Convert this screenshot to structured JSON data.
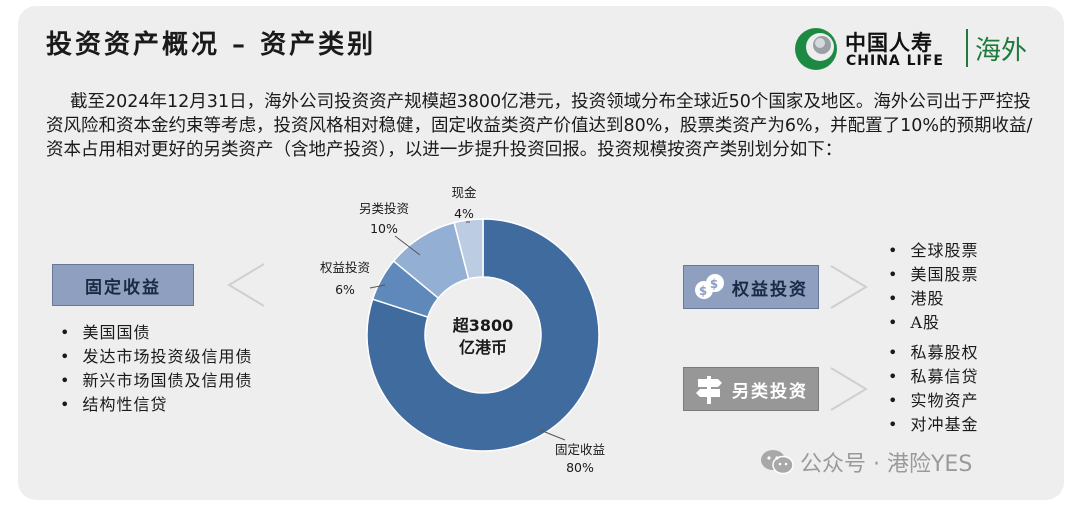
{
  "title": "投资资产概况 – 资产类别",
  "logo": {
    "cn": "中国人寿",
    "en": "CHINA LIFE",
    "region": "海外"
  },
  "intro": "截至2024年12月31日，海外公司投资资产规模超3800亿港元，投资领域分布全球近50个国家及地区。海外公司出于严控投资风险和资本金约束等考虑，投资风格相对稳健，固定收益类资产价值达到80%，股票类资产为6%，并配置了10%的预期收益/资本占用相对更好的另类资产（含地产投资），以进一步提升投资回报。投资规模按资产类别划分如下：",
  "chart_data": {
    "type": "pie",
    "donut": true,
    "center_label": [
      "超3800",
      "亿港币"
    ],
    "slices": [
      {
        "label": "固定收益",
        "value": 80,
        "value_label": "80%",
        "color": "#3f6b9e"
      },
      {
        "label": "权益投资",
        "value": 6,
        "value_label": "6%",
        "color": "#5f88bb"
      },
      {
        "label": "另类投资",
        "value": 10,
        "value_label": "10%",
        "color": "#93afd3"
      },
      {
        "label": "现金",
        "value": 4,
        "value_label": "4%",
        "color": "#bccce2"
      }
    ]
  },
  "fixed_income": {
    "label": "固定收益",
    "items": [
      "美国国债",
      "发达市场投资级信用债",
      "新兴市场国债及信用债",
      "结构性信贷"
    ]
  },
  "equity": {
    "label": "权益投资",
    "items": [
      "全球股票",
      "美国股票",
      "港股",
      "A股"
    ]
  },
  "alternative": {
    "label": "另类投资",
    "items": [
      "私募股权",
      "私募信贷",
      "实物资产",
      "对冲基金"
    ]
  },
  "watermark": "公众号 · 港险YES",
  "icons": {
    "logo": "china-life-logo",
    "equity": "coins-icon",
    "alternative": "signpost-icon",
    "watermark": "wechat-icon"
  }
}
